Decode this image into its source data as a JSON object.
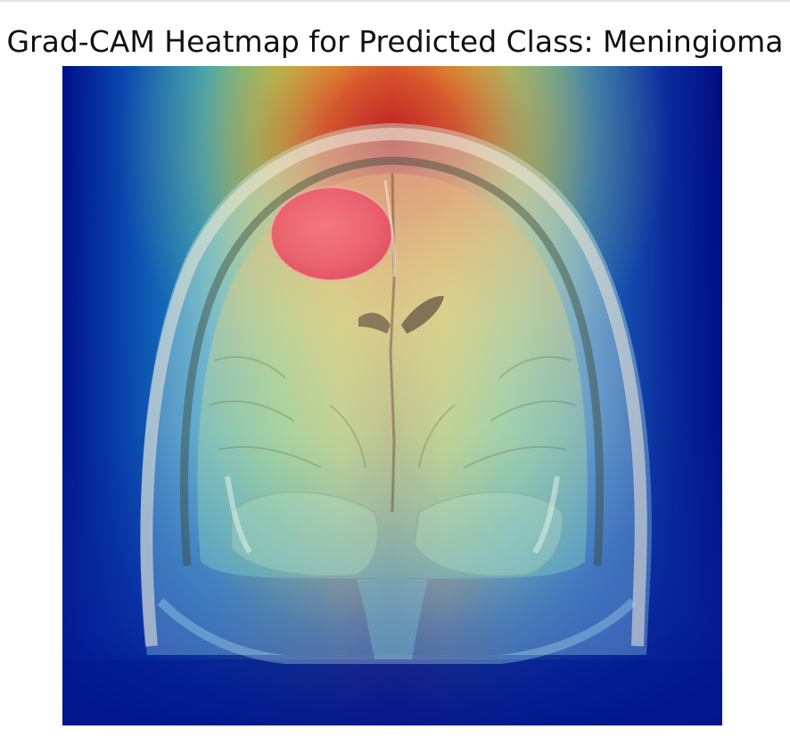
{
  "figure": {
    "title": "Grad-CAM Heatmap for Predicted Class: Meningioma",
    "colors": {
      "cold": "#00108a",
      "cool": "#1e78d2",
      "cyan": "#3cc8d8",
      "green": "#7ad27a",
      "yellow": "#e6d23c",
      "orange": "#e89028",
      "hot": "#d22a24",
      "hotspot": "#f06478",
      "tissue": "#cfe3d8"
    }
  }
}
